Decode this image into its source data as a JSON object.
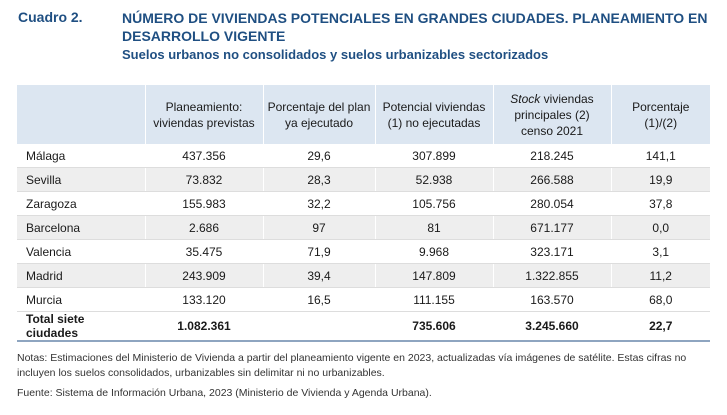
{
  "header": {
    "number": "Cuadro 2.",
    "title": "NÚMERO DE VIVIENDAS POTENCIALES EN GRANDES CIUDADES. PLANEAMIENTO EN DESARROLLO VIGENTE",
    "subtitle": "Suelos urbanos no consolidados y suelos urbanizables sectorizados"
  },
  "table": {
    "columns": [
      "",
      "Planeamiento: viviendas previstas",
      "Porcentaje del plan ya ejecutado",
      "Potencial viviendas (1) no ejecutadas",
      "Stock viviendas principales (2) censo 2021",
      "Porcentaje (1)/(2)"
    ],
    "col4_italic": "Stock",
    "col4_rest": " viviendas principales (2) censo 2021",
    "rows": [
      [
        "Málaga",
        "437.356",
        "29,6",
        "307.899",
        "218.245",
        "141,1"
      ],
      [
        "Sevilla",
        "73.832",
        "28,3",
        "52.938",
        "266.588",
        "19,9"
      ],
      [
        "Zaragoza",
        "155.983",
        "32,2",
        "105.756",
        "280.054",
        "37,8"
      ],
      [
        "Barcelona",
        "2.686",
        "97",
        "81",
        "671.177",
        "0,0"
      ],
      [
        "Valencia",
        "35.475",
        "71,9",
        "9.968",
        "323.171",
        "3,1"
      ],
      [
        "Madrid",
        "243.909",
        "39,4",
        "147.809",
        "1.322.855",
        "11,2"
      ],
      [
        "Murcia",
        "133.120",
        "16,5",
        "111.155",
        "163.570",
        "68,0"
      ]
    ],
    "total": [
      "Total siete ciudades",
      "1.082.361",
      "",
      "735.606",
      "3.245.660",
      "22,7"
    ]
  },
  "notes": "Notas: Estimaciones del Ministerio de Vivienda a partir del planeamiento vigente en 2023, actualizadas vía imágenes de satélite. Estas cifras no incluyen los suelos consolidados, urbanizables sin delimitar ni no urbanizables.",
  "source": "Fuente: Sistema de Información Urbana, 2023 (Ministerio de Vivienda y Agenda Urbana)."
}
